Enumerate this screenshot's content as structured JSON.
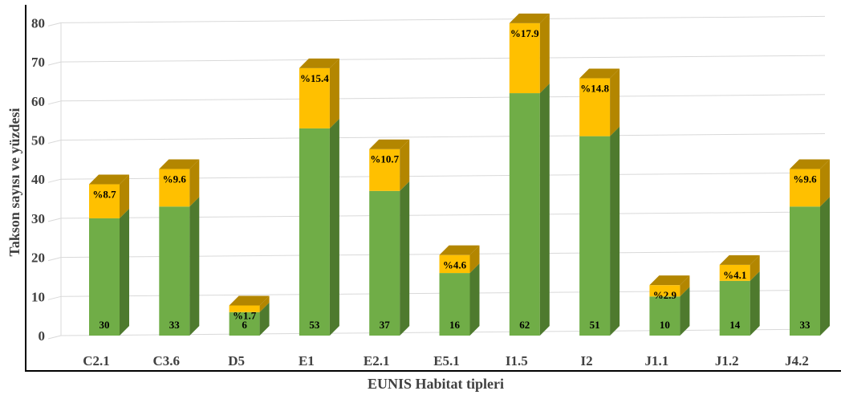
{
  "chart_data": {
    "type": "bar",
    "stacked": true,
    "three_d": true,
    "xlabel": "EUNIS Habitat tipleri",
    "ylabel": "Takson sayısı ve yüzdesi",
    "ylim": [
      0,
      80
    ],
    "yticks": [
      0,
      10,
      20,
      30,
      40,
      50,
      60,
      70,
      80
    ],
    "grid": true,
    "categories": [
      "C2.1",
      "C3.6",
      "D5",
      "E1",
      "E2.1",
      "E5.1",
      "I1.5",
      "I2",
      "J1.1",
      "J1.2",
      "J4.2"
    ],
    "series": [
      {
        "key": "count",
        "color": "#70ad47",
        "color_side": "#4e7a2e",
        "values": [
          30,
          33,
          6,
          53,
          37,
          16,
          62,
          51,
          10,
          14,
          33
        ],
        "labels": [
          "30",
          "33",
          "6",
          "53",
          "37",
          "16",
          "62",
          "51",
          "10",
          "14",
          "33"
        ]
      },
      {
        "key": "percent",
        "color": "#ffc000",
        "color_side": "#b38600",
        "values": [
          8.7,
          9.6,
          1.7,
          15.4,
          10.7,
          4.6,
          17.9,
          14.8,
          2.9,
          4.1,
          9.6
        ],
        "labels": [
          "%8.7",
          "%9.6",
          "%1.7",
          "%15.4",
          "%10.7",
          "%4.6",
          "%17.9",
          "%14.8",
          "%2.9",
          "%4.1",
          "%9.6"
        ]
      }
    ]
  }
}
